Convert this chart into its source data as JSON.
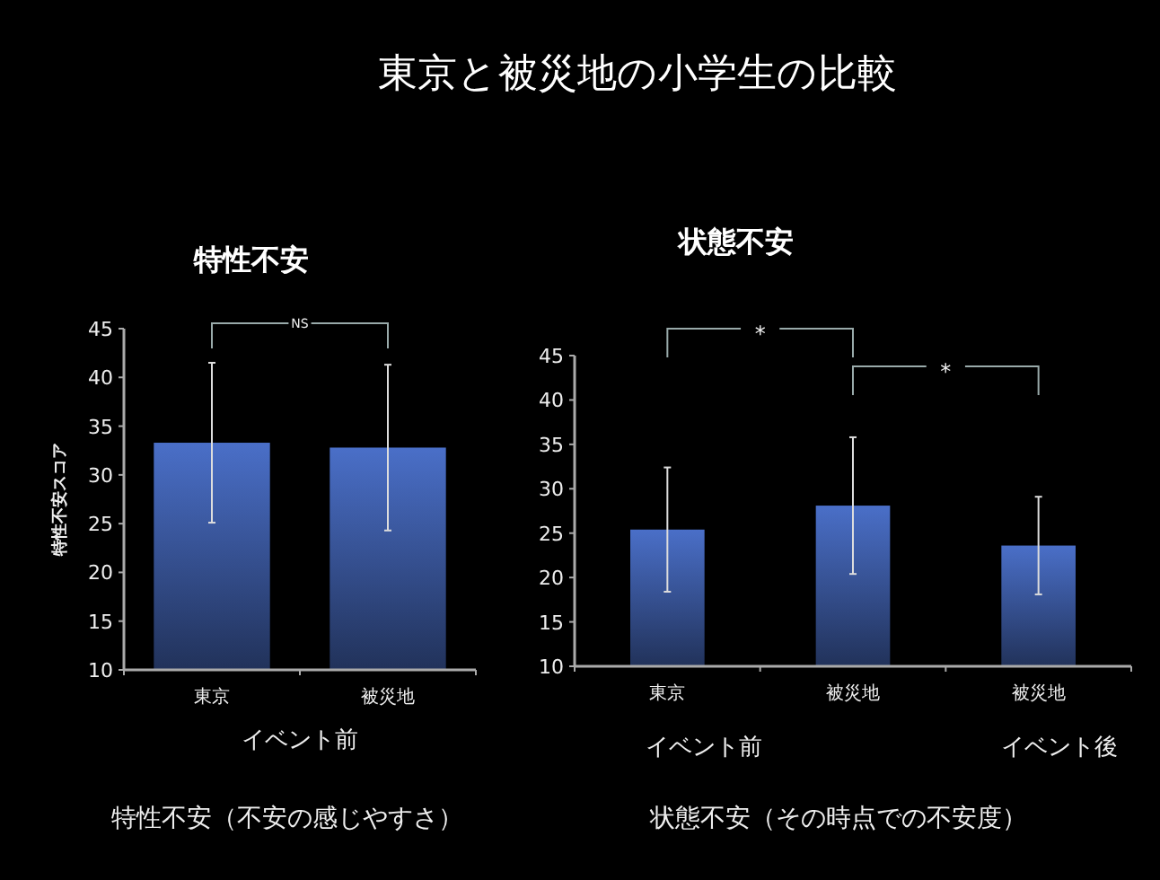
{
  "chart_data": [
    {
      "type": "bar",
      "title": "特性不安",
      "ylabel": "特性不安スコア",
      "xlabel": "イベント前",
      "categories": [
        "東京",
        "被災地"
      ],
      "values": [
        33.3,
        32.8
      ],
      "errors": [
        8.2,
        8.5
      ],
      "color": "#4a6fc8",
      "ylim": [
        10,
        45
      ],
      "yticks": [
        10,
        15,
        20,
        25,
        30,
        35,
        40,
        45
      ],
      "annotations": [
        "東京と被災地の小学生の比較",
        "NS",
        "特性不安（不安の感じやすさ）"
      ]
    },
    {
      "type": "bar",
      "title": "状態不安",
      "categories": [
        "東京",
        "被災地",
        "被災地"
      ],
      "values": [
        25.4,
        28.1,
        23.6
      ],
      "errors": [
        7.0,
        7.7,
        5.5
      ],
      "color": "#4a6fc8",
      "ylim": [
        10,
        45
      ],
      "yticks": [
        10,
        15,
        20,
        25,
        30,
        35,
        40,
        45
      ],
      "annotations": [
        "*",
        "*",
        "イベント前",
        "イベント後",
        "状態不安（その時点での不安度）"
      ]
    }
  ]
}
